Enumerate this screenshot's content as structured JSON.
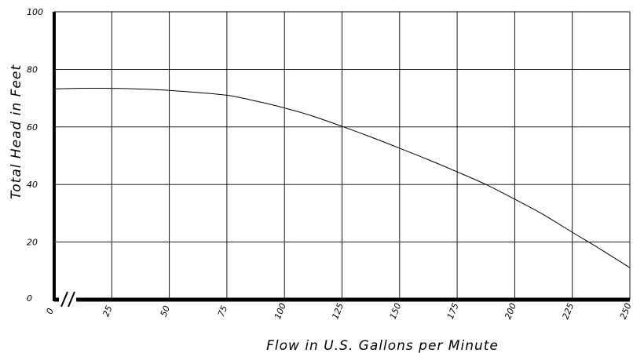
{
  "chart_data": {
    "type": "line",
    "xlabel": "Flow in U.S. Gallons per Minute",
    "ylabel": "Total Head in Feet",
    "xlim": [
      0,
      250
    ],
    "ylim": [
      0,
      100
    ],
    "x_ticks": [
      "0",
      "25",
      "50",
      "75",
      "100",
      "125",
      "150",
      "175",
      "200",
      "225",
      "250"
    ],
    "y_ticks": [
      "0",
      "20",
      "40",
      "60",
      "80",
      "100"
    ],
    "grid": true,
    "series": [
      {
        "x": [
          0,
          10,
          25,
          40,
          50,
          60,
          75,
          87.5,
          100,
          112.5,
          125,
          137.5,
          150,
          162.5,
          175,
          187.5,
          200,
          212.5,
          225,
          237.5,
          250
        ],
        "y": [
          73.2,
          73.4,
          73.4,
          73.1,
          72.7,
          72.1,
          71.0,
          69.0,
          66.6,
          63.7,
          60.2,
          56.5,
          52.6,
          48.6,
          44.4,
          40.0,
          34.9,
          29.5,
          23.4,
          17.4,
          11.1
        ]
      }
    ]
  }
}
